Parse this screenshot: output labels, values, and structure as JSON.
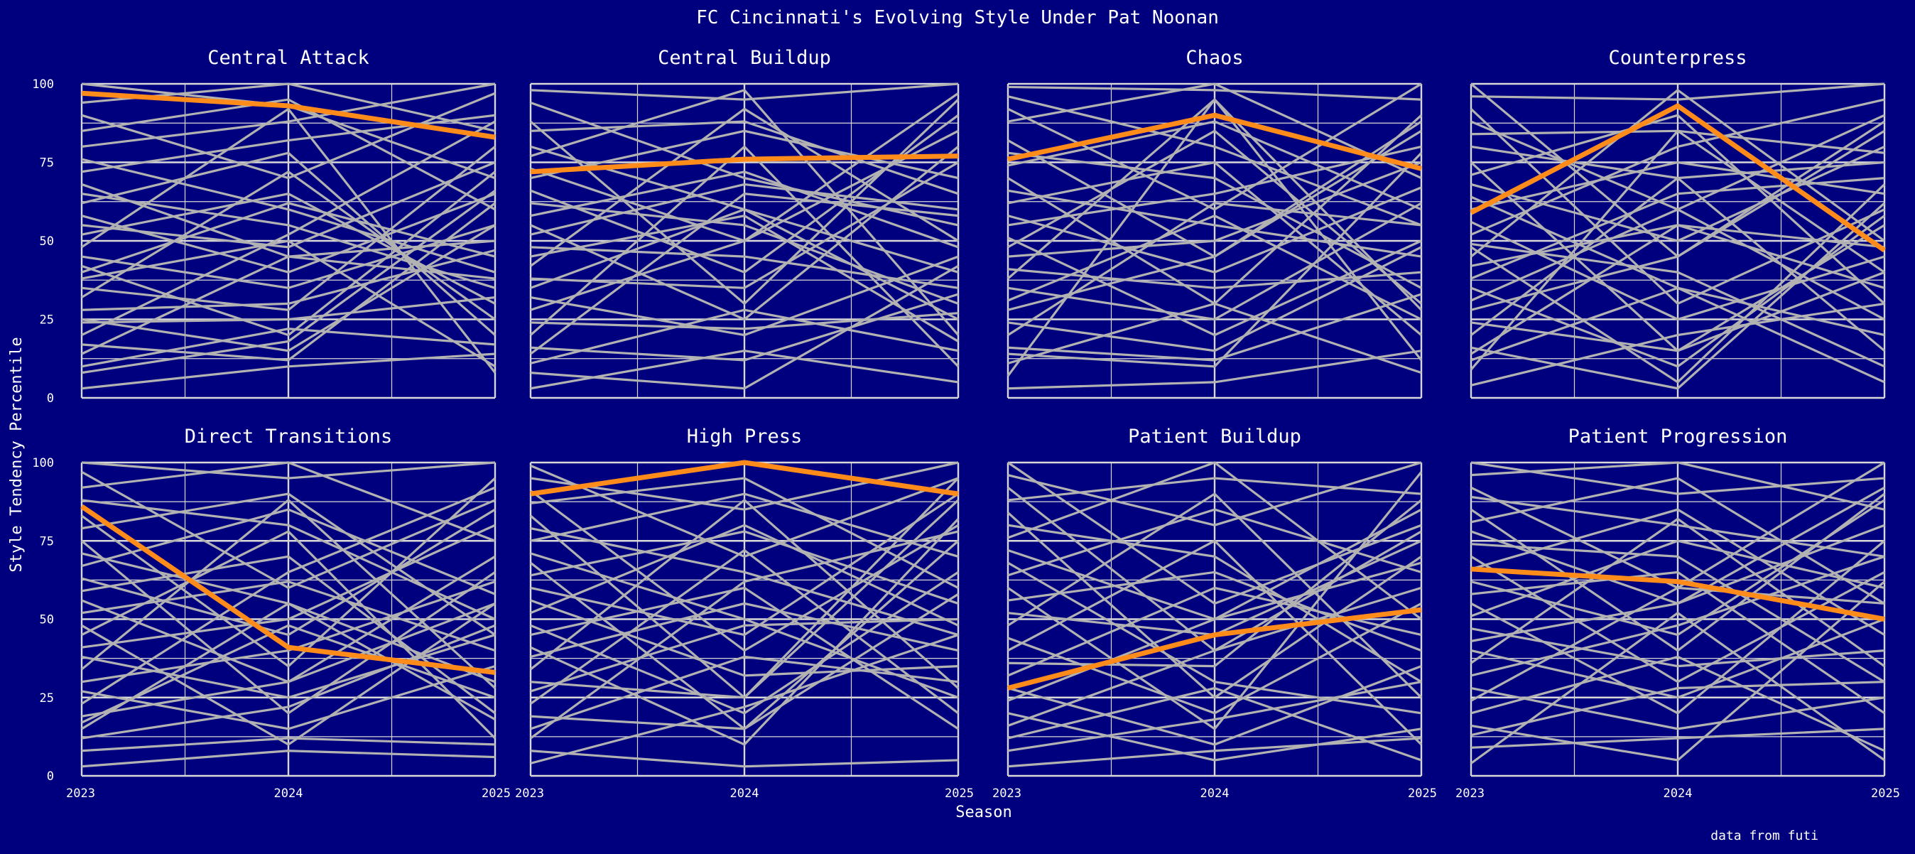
{
  "chart_data": {
    "type": "line",
    "title": "FC Cincinnati's Evolving Style Under Pat Noonan",
    "xlabel": "Season",
    "ylabel": "Style Tendency Percentile",
    "caption": "data from futi",
    "x": [
      "2023",
      "2024",
      "2025"
    ],
    "ylim": [
      0,
      100
    ],
    "yticks": [
      0,
      25,
      50,
      75,
      100
    ],
    "grid": true,
    "colors": {
      "background": "#00007f",
      "grid": "#d8d8d8",
      "other_teams": "#b2b2b2",
      "highlight": "#ff8c1a",
      "text": "#ffffff"
    },
    "facets": [
      {
        "title": "Central Attack",
        "highlight": [
          97,
          93,
          83
        ],
        "others": [
          [
            100,
            93,
            70
          ],
          [
            94,
            100,
            85
          ],
          [
            90,
            70,
            97
          ],
          [
            85,
            95,
            60
          ],
          [
            80,
            88,
            100
          ],
          [
            76,
            60,
            40
          ],
          [
            72,
            82,
            90
          ],
          [
            68,
            45,
            50
          ],
          [
            65,
            55,
            35
          ],
          [
            62,
            78,
            20
          ],
          [
            58,
            40,
            65
          ],
          [
            55,
            48,
            75
          ],
          [
            52,
            65,
            30
          ],
          [
            48,
            92,
            8
          ],
          [
            45,
            35,
            55
          ],
          [
            42,
            20,
            72
          ],
          [
            40,
            62,
            45
          ],
          [
            38,
            50,
            10
          ],
          [
            35,
            28,
            80
          ],
          [
            32,
            72,
            25
          ],
          [
            28,
            30,
            47
          ],
          [
            25,
            15,
            55
          ],
          [
            24,
            25,
            32
          ],
          [
            20,
            52,
            88
          ],
          [
            17,
            12,
            62
          ],
          [
            14,
            45,
            38
          ],
          [
            10,
            22,
            17
          ],
          [
            8,
            18,
            66
          ],
          [
            3,
            10,
            14
          ]
        ]
      },
      {
        "title": "Central Buildup",
        "highlight": [
          72,
          76,
          77
        ],
        "others": [
          [
            98,
            95,
            100
          ],
          [
            94,
            70,
            55
          ],
          [
            88,
            30,
            95
          ],
          [
            85,
            88,
            65
          ],
          [
            80,
            60,
            40
          ],
          [
            77,
            98,
            20
          ],
          [
            73,
            50,
            85
          ],
          [
            70,
            85,
            70
          ],
          [
            66,
            40,
            90
          ],
          [
            62,
            55,
            30
          ],
          [
            58,
            72,
            48
          ],
          [
            55,
            25,
            80
          ],
          [
            52,
            68,
            60
          ],
          [
            48,
            45,
            35
          ],
          [
            45,
            58,
            18
          ],
          [
            42,
            92,
            50
          ],
          [
            38,
            35,
            75
          ],
          [
            35,
            60,
            25
          ],
          [
            32,
            20,
            45
          ],
          [
            28,
            50,
            97
          ],
          [
            24,
            22,
            27
          ],
          [
            20,
            80,
            10
          ],
          [
            16,
            12,
            33
          ],
          [
            14,
            65,
            58
          ],
          [
            11,
            28,
            15
          ],
          [
            8,
            3,
            42
          ],
          [
            3,
            15,
            5
          ]
        ]
      },
      {
        "title": "Chaos",
        "highlight": [
          76,
          90,
          73
        ],
        "others": [
          [
            99,
            98,
            95
          ],
          [
            96,
            80,
            55
          ],
          [
            92,
            60,
            100
          ],
          [
            88,
            100,
            70
          ],
          [
            82,
            45,
            85
          ],
          [
            78,
            70,
            35
          ],
          [
            74,
            88,
            60
          ],
          [
            70,
            30,
            90
          ],
          [
            66,
            55,
            45
          ],
          [
            62,
            75,
            20
          ],
          [
            58,
            40,
            67
          ],
          [
            55,
            65,
            80
          ],
          [
            51,
            20,
            50
          ],
          [
            48,
            85,
            30
          ],
          [
            45,
            50,
            75
          ],
          [
            41,
            35,
            40
          ],
          [
            38,
            95,
            12
          ],
          [
            35,
            25,
            62
          ],
          [
            31,
            58,
            25
          ],
          [
            28,
            45,
            88
          ],
          [
            24,
            15,
            48
          ],
          [
            20,
            62,
            55
          ],
          [
            16,
            12,
            33
          ],
          [
            11,
            30,
            8
          ],
          [
            7,
            95,
            28
          ],
          [
            3,
            5,
            15
          ],
          [
            14,
            10,
            78
          ]
        ]
      },
      {
        "title": "Counterpress",
        "highlight": [
          59,
          93,
          47
        ],
        "others": [
          [
            100,
            45,
            85
          ],
          [
            96,
            95,
            100
          ],
          [
            92,
            30,
            60
          ],
          [
            88,
            60,
            90
          ],
          [
            84,
            85,
            40
          ],
          [
            80,
            70,
            75
          ],
          [
            75,
            15,
            55
          ],
          [
            71,
            90,
            30
          ],
          [
            68,
            50,
            80
          ],
          [
            64,
            35,
            20
          ],
          [
            60,
            75,
            65
          ],
          [
            56,
            25,
            45
          ],
          [
            52,
            80,
            95
          ],
          [
            49,
            40,
            10
          ],
          [
            45,
            98,
            50
          ],
          [
            42,
            55,
            35
          ],
          [
            38,
            65,
            70
          ],
          [
            35,
            10,
            58
          ],
          [
            31,
            60,
            25
          ],
          [
            28,
            45,
            88
          ],
          [
            24,
            15,
            40
          ],
          [
            20,
            70,
            15
          ],
          [
            16,
            3,
            62
          ],
          [
            12,
            35,
            5
          ],
          [
            9,
            85,
            78
          ],
          [
            4,
            20,
            30
          ],
          [
            14,
            55,
            48
          ],
          [
            48,
            5,
            68
          ]
        ]
      },
      {
        "title": "Direct Transitions",
        "highlight": [
          86,
          41,
          33
        ],
        "others": [
          [
            100,
            95,
            100
          ],
          [
            97,
            60,
            88
          ],
          [
            92,
            100,
            75
          ],
          [
            88,
            80,
            50
          ],
          [
            83,
            35,
            95
          ],
          [
            79,
            90,
            45
          ],
          [
            75,
            20,
            65
          ],
          [
            71,
            55,
            30
          ],
          [
            67,
            85,
            58
          ],
          [
            63,
            45,
            85
          ],
          [
            59,
            70,
            20
          ],
          [
            56,
            30,
            70
          ],
          [
            52,
            62,
            40
          ],
          [
            48,
            10,
            55
          ],
          [
            45,
            78,
            12
          ],
          [
            41,
            50,
            80
          ],
          [
            38,
            25,
            45
          ],
          [
            34,
            88,
            28
          ],
          [
            30,
            40,
            62
          ],
          [
            27,
            15,
            35
          ],
          [
            23,
            65,
            92
          ],
          [
            19,
            30,
            55
          ],
          [
            15,
            55,
            18
          ],
          [
            12,
            22,
            48
          ],
          [
            8,
            12,
            10
          ],
          [
            3,
            8,
            6
          ],
          [
            17,
            48,
            25
          ]
        ]
      },
      {
        "title": "High Press",
        "highlight": [
          90,
          100,
          90
        ],
        "others": [
          [
            99,
            70,
            95
          ],
          [
            95,
            85,
            100
          ],
          [
            91,
            40,
            80
          ],
          [
            87,
            95,
            60
          ],
          [
            83,
            25,
            88
          ],
          [
            79,
            65,
            45
          ],
          [
            75,
            90,
            70
          ],
          [
            71,
            50,
            25
          ],
          [
            68,
            15,
            75
          ],
          [
            64,
            78,
            55
          ],
          [
            60,
            45,
            90
          ],
          [
            56,
            32,
            35
          ],
          [
            52,
            80,
            48
          ],
          [
            48,
            20,
            65
          ],
          [
            45,
            60,
            15
          ],
          [
            41,
            10,
            82
          ],
          [
            38,
            55,
            40
          ],
          [
            34,
            88,
            28
          ],
          [
            30,
            25,
            95
          ],
          [
            27,
            48,
            50
          ],
          [
            23,
            72,
            20
          ],
          [
            19,
            15,
            58
          ],
          [
            15,
            38,
            30
          ],
          [
            12,
            62,
            78
          ],
          [
            8,
            3,
            5
          ],
          [
            4,
            22,
            45
          ]
        ]
      },
      {
        "title": "Patient Buildup",
        "highlight": [
          28,
          45,
          53
        ],
        "others": [
          [
            100,
            55,
            80
          ],
          [
            96,
            80,
            100
          ],
          [
            92,
            40,
            60
          ],
          [
            88,
            95,
            90
          ],
          [
            84,
            25,
            70
          ],
          [
            80,
            70,
            30
          ],
          [
            76,
            100,
            50
          ],
          [
            72,
            50,
            85
          ],
          [
            68,
            30,
            20
          ],
          [
            64,
            85,
            65
          ],
          [
            60,
            15,
            97
          ],
          [
            56,
            65,
            40
          ],
          [
            52,
            45,
            75
          ],
          [
            48,
            90,
            25
          ],
          [
            44,
            20,
            55
          ],
          [
            40,
            75,
            10
          ],
          [
            36,
            35,
            88
          ],
          [
            32,
            60,
            45
          ],
          [
            28,
            10,
            35
          ],
          [
            24,
            50,
            68
          ],
          [
            20,
            5,
            15
          ],
          [
            16,
            40,
            78
          ],
          [
            12,
            28,
            5
          ],
          [
            8,
            18,
            30
          ],
          [
            3,
            8,
            12
          ]
        ]
      },
      {
        "title": "Patient Progression",
        "highlight": [
          66,
          62,
          50
        ],
        "others": [
          [
            100,
            90,
            95
          ],
          [
            96,
            100,
            85
          ],
          [
            92,
            60,
            100
          ],
          [
            89,
            80,
            70
          ],
          [
            85,
            40,
            90
          ],
          [
            81,
            95,
            55
          ],
          [
            78,
            55,
            80
          ],
          [
            74,
            70,
            30
          ],
          [
            70,
            30,
            65
          ],
          [
            66,
            85,
            45
          ],
          [
            62,
            45,
            88
          ],
          [
            58,
            65,
            20
          ],
          [
            55,
            20,
            75
          ],
          [
            51,
            75,
            60
          ],
          [
            47,
            35,
            40
          ],
          [
            43,
            55,
            92
          ],
          [
            40,
            25,
            50
          ],
          [
            36,
            82,
            35
          ],
          [
            32,
            48,
            70
          ],
          [
            28,
            15,
            25
          ],
          [
            24,
            60,
            55
          ],
          [
            20,
            38,
            8
          ],
          [
            16,
            5,
            62
          ],
          [
            13,
            28,
            30
          ],
          [
            9,
            12,
            15
          ],
          [
            4,
            52,
            5
          ]
        ]
      }
    ]
  }
}
